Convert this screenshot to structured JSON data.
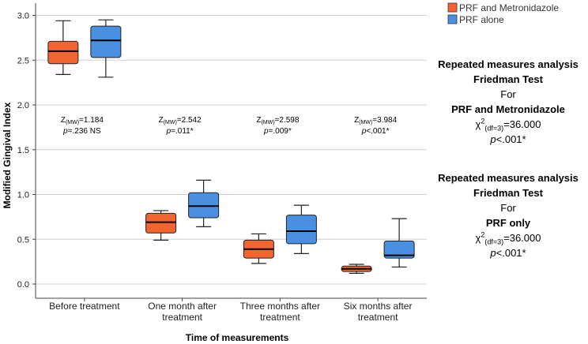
{
  "chart_data": {
    "type": "boxplot",
    "ylabel": "Modified Gingival Index",
    "xlabel": "Time of measurements",
    "ylim": [
      -0.1,
      3.2
    ],
    "yticks": [
      0.0,
      0.5,
      1.0,
      1.5,
      2.0,
      2.5,
      3.0
    ],
    "ytick_labels": [
      "0.0",
      "0.5",
      "1.0",
      "1.5",
      "2.0",
      "2.5",
      "3.0"
    ],
    "grid": true,
    "legend_position": "top-right",
    "categories": [
      [
        "Before treatment"
      ],
      [
        "One month after",
        "treatment"
      ],
      [
        "Three months after",
        "treatment"
      ],
      [
        "Six months after",
        "treatment"
      ]
    ],
    "series": [
      {
        "name": "PRF and Metronidazole",
        "color": "#f26530",
        "boxes": [
          {
            "min": 2.34,
            "q1": 2.46,
            "median": 2.6,
            "q3": 2.71,
            "max": 2.94
          },
          {
            "min": 0.49,
            "q1": 0.57,
            "median": 0.69,
            "q3": 0.79,
            "max": 0.82
          },
          {
            "min": 0.23,
            "q1": 0.29,
            "median": 0.39,
            "q3": 0.49,
            "max": 0.56
          },
          {
            "min": 0.12,
            "q1": 0.14,
            "median": 0.17,
            "q3": 0.2,
            "max": 0.22
          }
        ]
      },
      {
        "name": "PRF alone",
        "color": "#4a90e2",
        "boxes": [
          {
            "min": 2.31,
            "q1": 2.53,
            "median": 2.72,
            "q3": 2.88,
            "max": 2.95
          },
          {
            "min": 0.64,
            "q1": 0.74,
            "median": 0.87,
            "q3": 1.02,
            "max": 1.16
          },
          {
            "min": 0.34,
            "q1": 0.45,
            "median": 0.59,
            "q3": 0.77,
            "max": 0.88
          },
          {
            "min": 0.19,
            "q1": 0.29,
            "median": 0.32,
            "q3": 0.48,
            "max": 0.73
          }
        ]
      }
    ],
    "annotations": [
      {
        "z": "1.184",
        "p": "=.236 NS"
      },
      {
        "z": "2.542",
        "p": "=.011*"
      },
      {
        "z": "2.598",
        "p": "=.009*"
      },
      {
        "z": "3.984",
        "p": "<.001*"
      }
    ],
    "annotation_z_prefix": "Z",
    "annotation_z_sub": "(MW)",
    "annotation_p_prefix": "p"
  },
  "side_notes": [
    {
      "title1": "Repeated measures analysis",
      "title2": "Friedman Test",
      "for": "For",
      "group": "PRF and Metronidazole",
      "chi_symbol": "χ",
      "chi_sup": "2",
      "chi_sub": "(df=3)",
      "chi_value": "=36.000",
      "p_letter": "p",
      "p_value": "<.001*"
    },
    {
      "title1": "Repeated measures analysis",
      "title2": "Friedman Test",
      "for": "For",
      "group": "PRF only",
      "chi_symbol": "χ",
      "chi_sup": "2",
      "chi_sub": "(df=3)",
      "chi_value": "=36.000",
      "p_letter": "p",
      "p_value": "<.001*"
    }
  ]
}
